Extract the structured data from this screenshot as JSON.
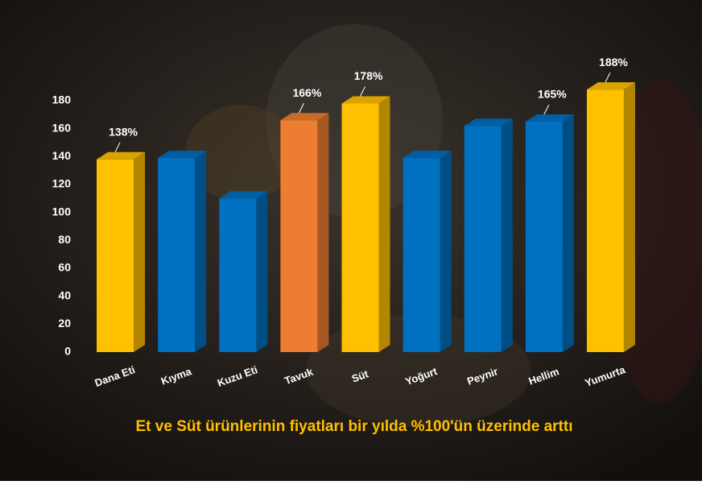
{
  "chart_data": {
    "type": "bar3d",
    "title": "Et ve Süt ürünlerinin fiyatları bir yılda %100'ün üzerinde arttı",
    "categories": [
      "Dana Eti",
      "Kıyma",
      "Kuzu Eti",
      "Tavuk",
      "Süt",
      "Yoğurt",
      "Peynir",
      "Hellim",
      "Yumurta"
    ],
    "values": [
      138,
      139,
      110,
      166,
      178,
      139,
      162,
      165,
      188
    ],
    "value_labels": [
      "138%",
      null,
      null,
      "166%",
      "178%",
      null,
      null,
      "165%",
      "188%"
    ],
    "colors": [
      "#ffc000",
      "#0070c0",
      "#0070c0",
      "#ed7d31",
      "#ffc000",
      "#0070c0",
      "#0070c0",
      "#0070c0",
      "#ffc000"
    ],
    "ylim": [
      0,
      180
    ],
    "yticks": [
      0,
      20,
      40,
      60,
      80,
      100,
      120,
      140,
      160,
      180
    ],
    "grid": false
  }
}
